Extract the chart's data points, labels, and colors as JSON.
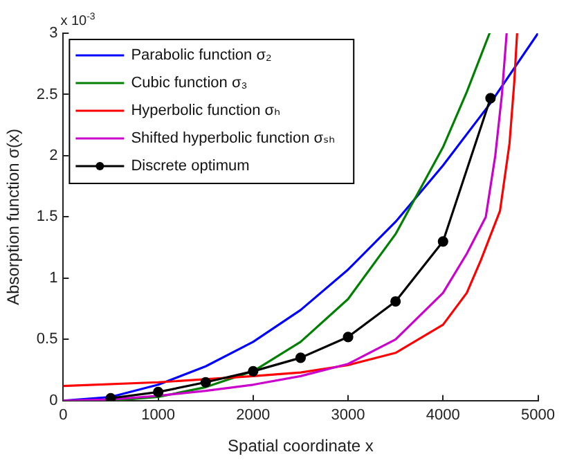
{
  "chart_data": {
    "type": "line",
    "xlabel": "Spatial coordinate x",
    "ylabel": "Absorption function σ(x)",
    "annotations": [
      "x 10$^{-3}$"
    ],
    "xlim": [
      0,
      5000
    ],
    "xticks": [
      0,
      1000,
      2000,
      3000,
      4000,
      5000
    ],
    "ylim": [
      0,
      3
    ],
    "yticks": [
      0,
      0.5,
      1,
      1.5,
      2,
      2.5,
      3
    ],
    "grid": false,
    "legend": "top left",
    "series": [
      {
        "name": "Parabolic function σ₂",
        "color": "#0000ff",
        "x": [
          0,
          500,
          1000,
          1500,
          2000,
          2500,
          3000,
          3500,
          4000,
          4500,
          5000
        ],
        "values": [
          0,
          0.03,
          0.13,
          0.28,
          0.48,
          0.74,
          1.07,
          1.46,
          1.92,
          2.43,
          3.0
        ]
      },
      {
        "name": "Cubic function σ₃",
        "color": "#008000",
        "x": [
          0,
          500,
          1000,
          1500,
          2000,
          2500,
          3000,
          3500,
          4000,
          4250,
          4490
        ],
        "values": [
          0,
          0.0,
          0.03,
          0.11,
          0.24,
          0.48,
          0.83,
          1.36,
          2.07,
          2.52,
          3.0
        ]
      },
      {
        "name": "Hyperbolic function σₕ",
        "color": "#ff0000",
        "x": [
          0,
          1000,
          2000,
          2500,
          3000,
          3500,
          4000,
          4250,
          4400,
          4500,
          4600,
          4700,
          4750,
          4780
        ],
        "values": [
          0.12,
          0.15,
          0.2,
          0.23,
          0.29,
          0.39,
          0.62,
          0.88,
          1.15,
          1.35,
          1.55,
          2.1,
          2.6,
          3.0
        ]
      },
      {
        "name": "Shifted hyperbolic function σₛₕ",
        "color": "#cc00cc",
        "x": [
          0,
          500,
          1000,
          1500,
          2000,
          2500,
          3000,
          3500,
          4000,
          4250,
          4450,
          4550,
          4620,
          4670
        ],
        "values": [
          0,
          0.01,
          0.04,
          0.08,
          0.13,
          0.2,
          0.3,
          0.5,
          0.88,
          1.2,
          1.5,
          2.0,
          2.5,
          3.0
        ]
      },
      {
        "name": "Discrete optimum",
        "color": "#000000",
        "marker": "circle",
        "x": [
          500,
          1000,
          1500,
          2000,
          2500,
          3000,
          3500,
          4000,
          4500
        ],
        "values": [
          0.02,
          0.07,
          0.15,
          0.24,
          0.35,
          0.52,
          0.81,
          1.3,
          2.47
        ]
      }
    ]
  }
}
